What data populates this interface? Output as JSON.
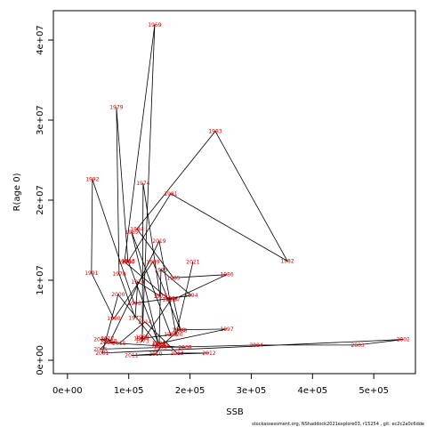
{
  "chart_data": {
    "type": "line",
    "xlabel": "SSB",
    "ylabel": "R(age 0)",
    "footnote": "stockassessment.org, NShaddock2021explore03, r15254 , git: ec2c2a0c6dde",
    "line_color": "#000000",
    "label_color": "#e00000",
    "point_labels": [
      "1963",
      "1964",
      "1965",
      "1966",
      "1967",
      "1968",
      "1969",
      "1970",
      "1971",
      "1972",
      "1973",
      "1974",
      "1975",
      "1976",
      "1977",
      "1978",
      "1979",
      "1980",
      "1981",
      "1982",
      "1983",
      "1984",
      "1985",
      "1986",
      "1987",
      "1988",
      "1989",
      "1990",
      "1991",
      "1992",
      "1993",
      "1994",
      "1995",
      "1996",
      "1997",
      "1998",
      "1999",
      "2000",
      "2001",
      "2002",
      "2003",
      "2004",
      "2005",
      "2006",
      "2007",
      "2008",
      "2009",
      "2010",
      "2011",
      "2012",
      "2013",
      "2014",
      "2015",
      "2016",
      "2017",
      "2018",
      "2019",
      "2020",
      "2021"
    ],
    "x": [
      99000,
      148300,
      104700,
      168600,
      119200,
      122100,
      142400,
      93000,
      165700,
      170100,
      122100,
      123500,
      151200,
      114800,
      110500,
      84300,
      79900,
      98800,
      168600,
      359000,
      241300,
      113400,
      173000,
      260200,
      173000,
      184600,
      139500,
      75600,
      39200,
      40700,
      109000,
      202000,
      152600,
      149700,
      260200,
      181700,
      151200,
      82800,
      56700,
      548000,
      473800,
      308100,
      53800,
      64000,
      148300,
      191900,
      154100,
      143900,
      104700,
      231100,
      178800,
      126500,
      84300,
      53800,
      65400,
      69800,
      149700,
      177300,
      204900
    ],
    "values": [
      12400000,
      2100000,
      16000000,
      3200000,
      2700000,
      2900000,
      41900000,
      12300000,
      7600000,
      7700000,
      2400000,
      22100000,
      8000000,
      9800000,
      5300000,
      10800000,
      31600000,
      12300000,
      20800000,
      12400000,
      28600000,
      16400000,
      10300000,
      10700000,
      7600000,
      3700000,
      12300000,
      5200000,
      10900000,
      22600000,
      7100000,
      8100000,
      11300000,
      2100000,
      3900000,
      3800000,
      1600000,
      8200000,
      900000,
      2600000,
      1900000,
      1900000,
      1400000,
      2200000,
      1800000,
      1600000,
      1800000,
      800000,
      600000,
      900000,
      900000,
      4800000,
      2100000,
      2600000,
      2700000,
      2400000,
      14900000,
      3200000,
      12300000
    ],
    "xlim": [
      -23000,
      568000
    ],
    "ylim": [
      -1670000,
      43670000
    ],
    "xticks": [
      {
        "value": 0,
        "label": "0e+00"
      },
      {
        "value": 100000,
        "label": "1e+05"
      },
      {
        "value": 200000,
        "label": "2e+05"
      },
      {
        "value": 300000,
        "label": "3e+05"
      },
      {
        "value": 400000,
        "label": "4e+05"
      },
      {
        "value": 500000,
        "label": "5e+05"
      }
    ],
    "yticks": [
      {
        "value": 0,
        "label": "0e+00"
      },
      {
        "value": 10000000,
        "label": "1e+07"
      },
      {
        "value": 20000000,
        "label": "2e+07"
      },
      {
        "value": 30000000,
        "label": "3e+07"
      },
      {
        "value": 40000000,
        "label": "4e+07"
      }
    ]
  }
}
